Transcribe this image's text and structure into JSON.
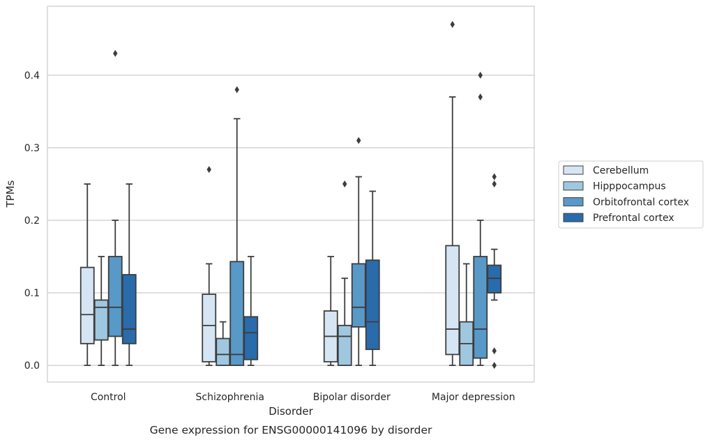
{
  "caption": "Gene expression for ENSG00000141096 by disorder",
  "chart_data": {
    "type": "boxplot",
    "xlabel": "Disorder",
    "ylabel": "TPMs",
    "ylim": [
      -0.023,
      0.495
    ],
    "yticks": [
      "0.0",
      "0.1",
      "0.2",
      "0.3",
      "0.4"
    ],
    "grid": "horizontal",
    "legend_placement": "right",
    "categories": [
      "Control",
      "Schizophrenia",
      "Bipolar disorder",
      "Major depression"
    ],
    "series": [
      {
        "name": "Cerebellum",
        "color": "#d6e5f3",
        "boxes": [
          {
            "low": 0.0,
            "q1": 0.03,
            "median": 0.07,
            "q3": 0.135,
            "high": 0.25,
            "outliers": []
          },
          {
            "low": 0.0,
            "q1": 0.005,
            "median": 0.055,
            "q3": 0.098,
            "high": 0.14,
            "outliers": [
              0.27
            ]
          },
          {
            "low": 0.0,
            "q1": 0.005,
            "median": 0.04,
            "q3": 0.075,
            "high": 0.15,
            "outliers": []
          },
          {
            "low": 0.0,
            "q1": 0.015,
            "median": 0.05,
            "q3": 0.165,
            "high": 0.37,
            "outliers": [
              0.47
            ]
          }
        ]
      },
      {
        "name": "Hipppocampus",
        "color": "#a0c7e0",
        "boxes": [
          {
            "low": 0.0,
            "q1": 0.035,
            "median": 0.08,
            "q3": 0.09,
            "high": 0.15,
            "outliers": []
          },
          {
            "low": 0.0,
            "q1": 0.0,
            "median": 0.015,
            "q3": 0.037,
            "high": 0.06,
            "outliers": []
          },
          {
            "low": 0.0,
            "q1": 0.0,
            "median": 0.04,
            "q3": 0.055,
            "high": 0.12,
            "outliers": [
              0.25
            ]
          },
          {
            "low": 0.0,
            "q1": 0.0,
            "median": 0.03,
            "q3": 0.06,
            "high": 0.14,
            "outliers": []
          }
        ]
      },
      {
        "name": "Orbitofrontal cortex",
        "color": "#5899c7",
        "boxes": [
          {
            "low": 0.0,
            "q1": 0.04,
            "median": 0.08,
            "q3": 0.15,
            "high": 0.2,
            "outliers": [
              0.43
            ]
          },
          {
            "low": 0.0,
            "q1": 0.0,
            "median": 0.015,
            "q3": 0.143,
            "high": 0.34,
            "outliers": [
              0.38
            ]
          },
          {
            "low": 0.0,
            "q1": 0.053,
            "median": 0.08,
            "q3": 0.14,
            "high": 0.26,
            "outliers": [
              0.31
            ]
          },
          {
            "low": 0.0,
            "q1": 0.01,
            "median": 0.05,
            "q3": 0.15,
            "high": 0.2,
            "outliers": [
              0.37,
              0.4
            ]
          }
        ]
      },
      {
        "name": "Prefrontal cortex",
        "color": "#2a6bab",
        "boxes": [
          {
            "low": 0.0,
            "q1": 0.03,
            "median": 0.05,
            "q3": 0.125,
            "high": 0.25,
            "outliers": []
          },
          {
            "low": 0.0,
            "q1": 0.008,
            "median": 0.045,
            "q3": 0.067,
            "high": 0.15,
            "outliers": []
          },
          {
            "low": 0.0,
            "q1": 0.022,
            "median": 0.06,
            "q3": 0.145,
            "high": 0.24,
            "outliers": []
          },
          {
            "low": 0.09,
            "q1": 0.1,
            "median": 0.12,
            "q3": 0.138,
            "high": 0.16,
            "outliers": [
              0.0,
              0.02,
              0.25,
              0.26
            ]
          }
        ]
      }
    ]
  }
}
